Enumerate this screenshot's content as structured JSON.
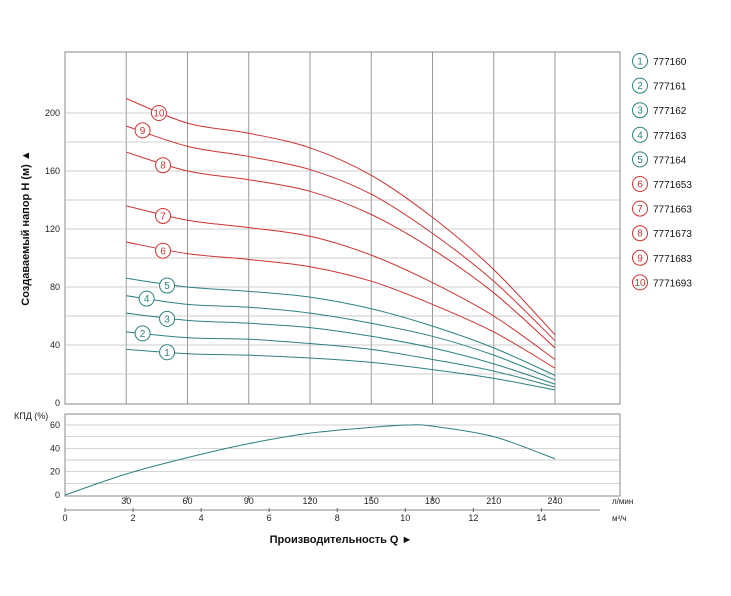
{
  "chart_data": [
    {
      "type": "line",
      "title": "",
      "ylabel": "Создаваемый напор H (м) ▲",
      "ylim": [
        0,
        210
      ],
      "yticks": [
        "0",
        "40",
        "80",
        "120",
        "160",
        "200"
      ],
      "x_lmin_ticks": [
        "30",
        "60",
        "90",
        "120",
        "150",
        "180",
        "210",
        "240"
      ],
      "x_lmin_unit": "л/мин",
      "x_m3h_ticks": [
        "0",
        "2",
        "4",
        "6",
        "8",
        "10",
        "12",
        "14"
      ],
      "x_m3h_unit": "м³/ч",
      "xlabel": "Производительность Q ►",
      "x_units": "л/мин",
      "grid": true,
      "legend_placement": "right",
      "colors": {
        "teal": "#2e8080",
        "red": "#cc3333"
      },
      "series": [
        {
          "id": "1",
          "name": "777160",
          "color": "teal",
          "x": [
            30,
            60,
            90,
            120,
            150,
            180,
            210,
            240
          ],
          "y": [
            37,
            34,
            33,
            31,
            28,
            23,
            17,
            9
          ]
        },
        {
          "id": "2",
          "name": "777161",
          "color": "teal",
          "x": [
            30,
            60,
            90,
            120,
            150,
            180,
            210,
            240
          ],
          "y": [
            49,
            45,
            44,
            41,
            37,
            30,
            22,
            11
          ]
        },
        {
          "id": "3",
          "name": "777162",
          "color": "teal",
          "x": [
            30,
            60,
            90,
            120,
            150,
            180,
            210,
            240
          ],
          "y": [
            62,
            57,
            55,
            52,
            46,
            38,
            27,
            13
          ]
        },
        {
          "id": "4",
          "name": "777163",
          "color": "teal",
          "x": [
            30,
            60,
            90,
            120,
            150,
            180,
            210,
            240
          ],
          "y": [
            74,
            68,
            66,
            62,
            55,
            46,
            33,
            16
          ]
        },
        {
          "id": "5",
          "name": "777164",
          "color": "teal",
          "x": [
            30,
            60,
            90,
            120,
            150,
            180,
            210,
            240
          ],
          "y": [
            86,
            80,
            77,
            73,
            65,
            53,
            38,
            19
          ]
        },
        {
          "id": "6",
          "name": "7771653",
          "color": "red",
          "x": [
            30,
            60,
            90,
            120,
            150,
            180,
            210,
            240
          ],
          "y": [
            111,
            103,
            99,
            94,
            84,
            68,
            49,
            24
          ]
        },
        {
          "id": "7",
          "name": "7771663",
          "color": "red",
          "x": [
            30,
            60,
            90,
            120,
            150,
            180,
            210,
            240
          ],
          "y": [
            136,
            126,
            121,
            115,
            102,
            83,
            60,
            30
          ]
        },
        {
          "id": "8",
          "name": "7771673",
          "color": "red",
          "x": [
            30,
            60,
            90,
            120,
            150,
            180,
            210,
            240
          ],
          "y": [
            173,
            160,
            154,
            146,
            130,
            106,
            76,
            38
          ]
        },
        {
          "id": "9",
          "name": "7771683",
          "color": "red",
          "x": [
            30,
            60,
            90,
            120,
            150,
            180,
            210,
            240
          ],
          "y": [
            191,
            177,
            170,
            161,
            144,
            117,
            84,
            43
          ]
        },
        {
          "id": "10",
          "name": "7771693",
          "color": "red",
          "x": [
            30,
            60,
            90,
            120,
            150,
            180,
            210,
            240
          ],
          "y": [
            210,
            193,
            186,
            176,
            157,
            128,
            92,
            47
          ]
        }
      ],
      "curve_labels": [
        {
          "text": "1",
          "x": 50,
          "y": 35
        },
        {
          "text": "2",
          "x": 38,
          "y": 48
        },
        {
          "text": "3",
          "x": 50,
          "y": 58
        },
        {
          "text": "4",
          "x": 40,
          "y": 72
        },
        {
          "text": "5",
          "x": 50,
          "y": 81
        },
        {
          "text": "6",
          "x": 48,
          "y": 105
        },
        {
          "text": "7",
          "x": 48,
          "y": 129
        },
        {
          "text": "8",
          "x": 48,
          "y": 164
        },
        {
          "text": "9",
          "x": 38,
          "y": 188
        },
        {
          "text": "10",
          "x": 46,
          "y": 200
        }
      ]
    },
    {
      "type": "line",
      "title": "",
      "ylabel": "КПД (%)",
      "ylim": [
        0,
        65
      ],
      "yticks": [
        "0",
        "20",
        "40",
        "60"
      ],
      "series": [
        {
          "name": "",
          "color": "teal",
          "x": [
            0,
            30,
            60,
            90,
            120,
            150,
            168,
            180,
            210,
            240
          ],
          "y": [
            0,
            18,
            32,
            44,
            53,
            58,
            60,
            59,
            50,
            31
          ]
        }
      ]
    }
  ],
  "legend": [
    {
      "num": "1",
      "code": "777160",
      "color": "teal"
    },
    {
      "num": "2",
      "code": "777161",
      "color": "teal"
    },
    {
      "num": "3",
      "code": "777162",
      "color": "teal"
    },
    {
      "num": "4",
      "code": "777163",
      "color": "teal"
    },
    {
      "num": "5",
      "code": "777164",
      "color": "teal"
    },
    {
      "num": "6",
      "code": "7771653",
      "color": "red"
    },
    {
      "num": "7",
      "code": "7771663",
      "color": "red"
    },
    {
      "num": "8",
      "code": "7771673",
      "color": "red"
    },
    {
      "num": "9",
      "code": "7771683",
      "color": "red"
    },
    {
      "num": "10",
      "code": "7771693",
      "color": "red"
    }
  ]
}
